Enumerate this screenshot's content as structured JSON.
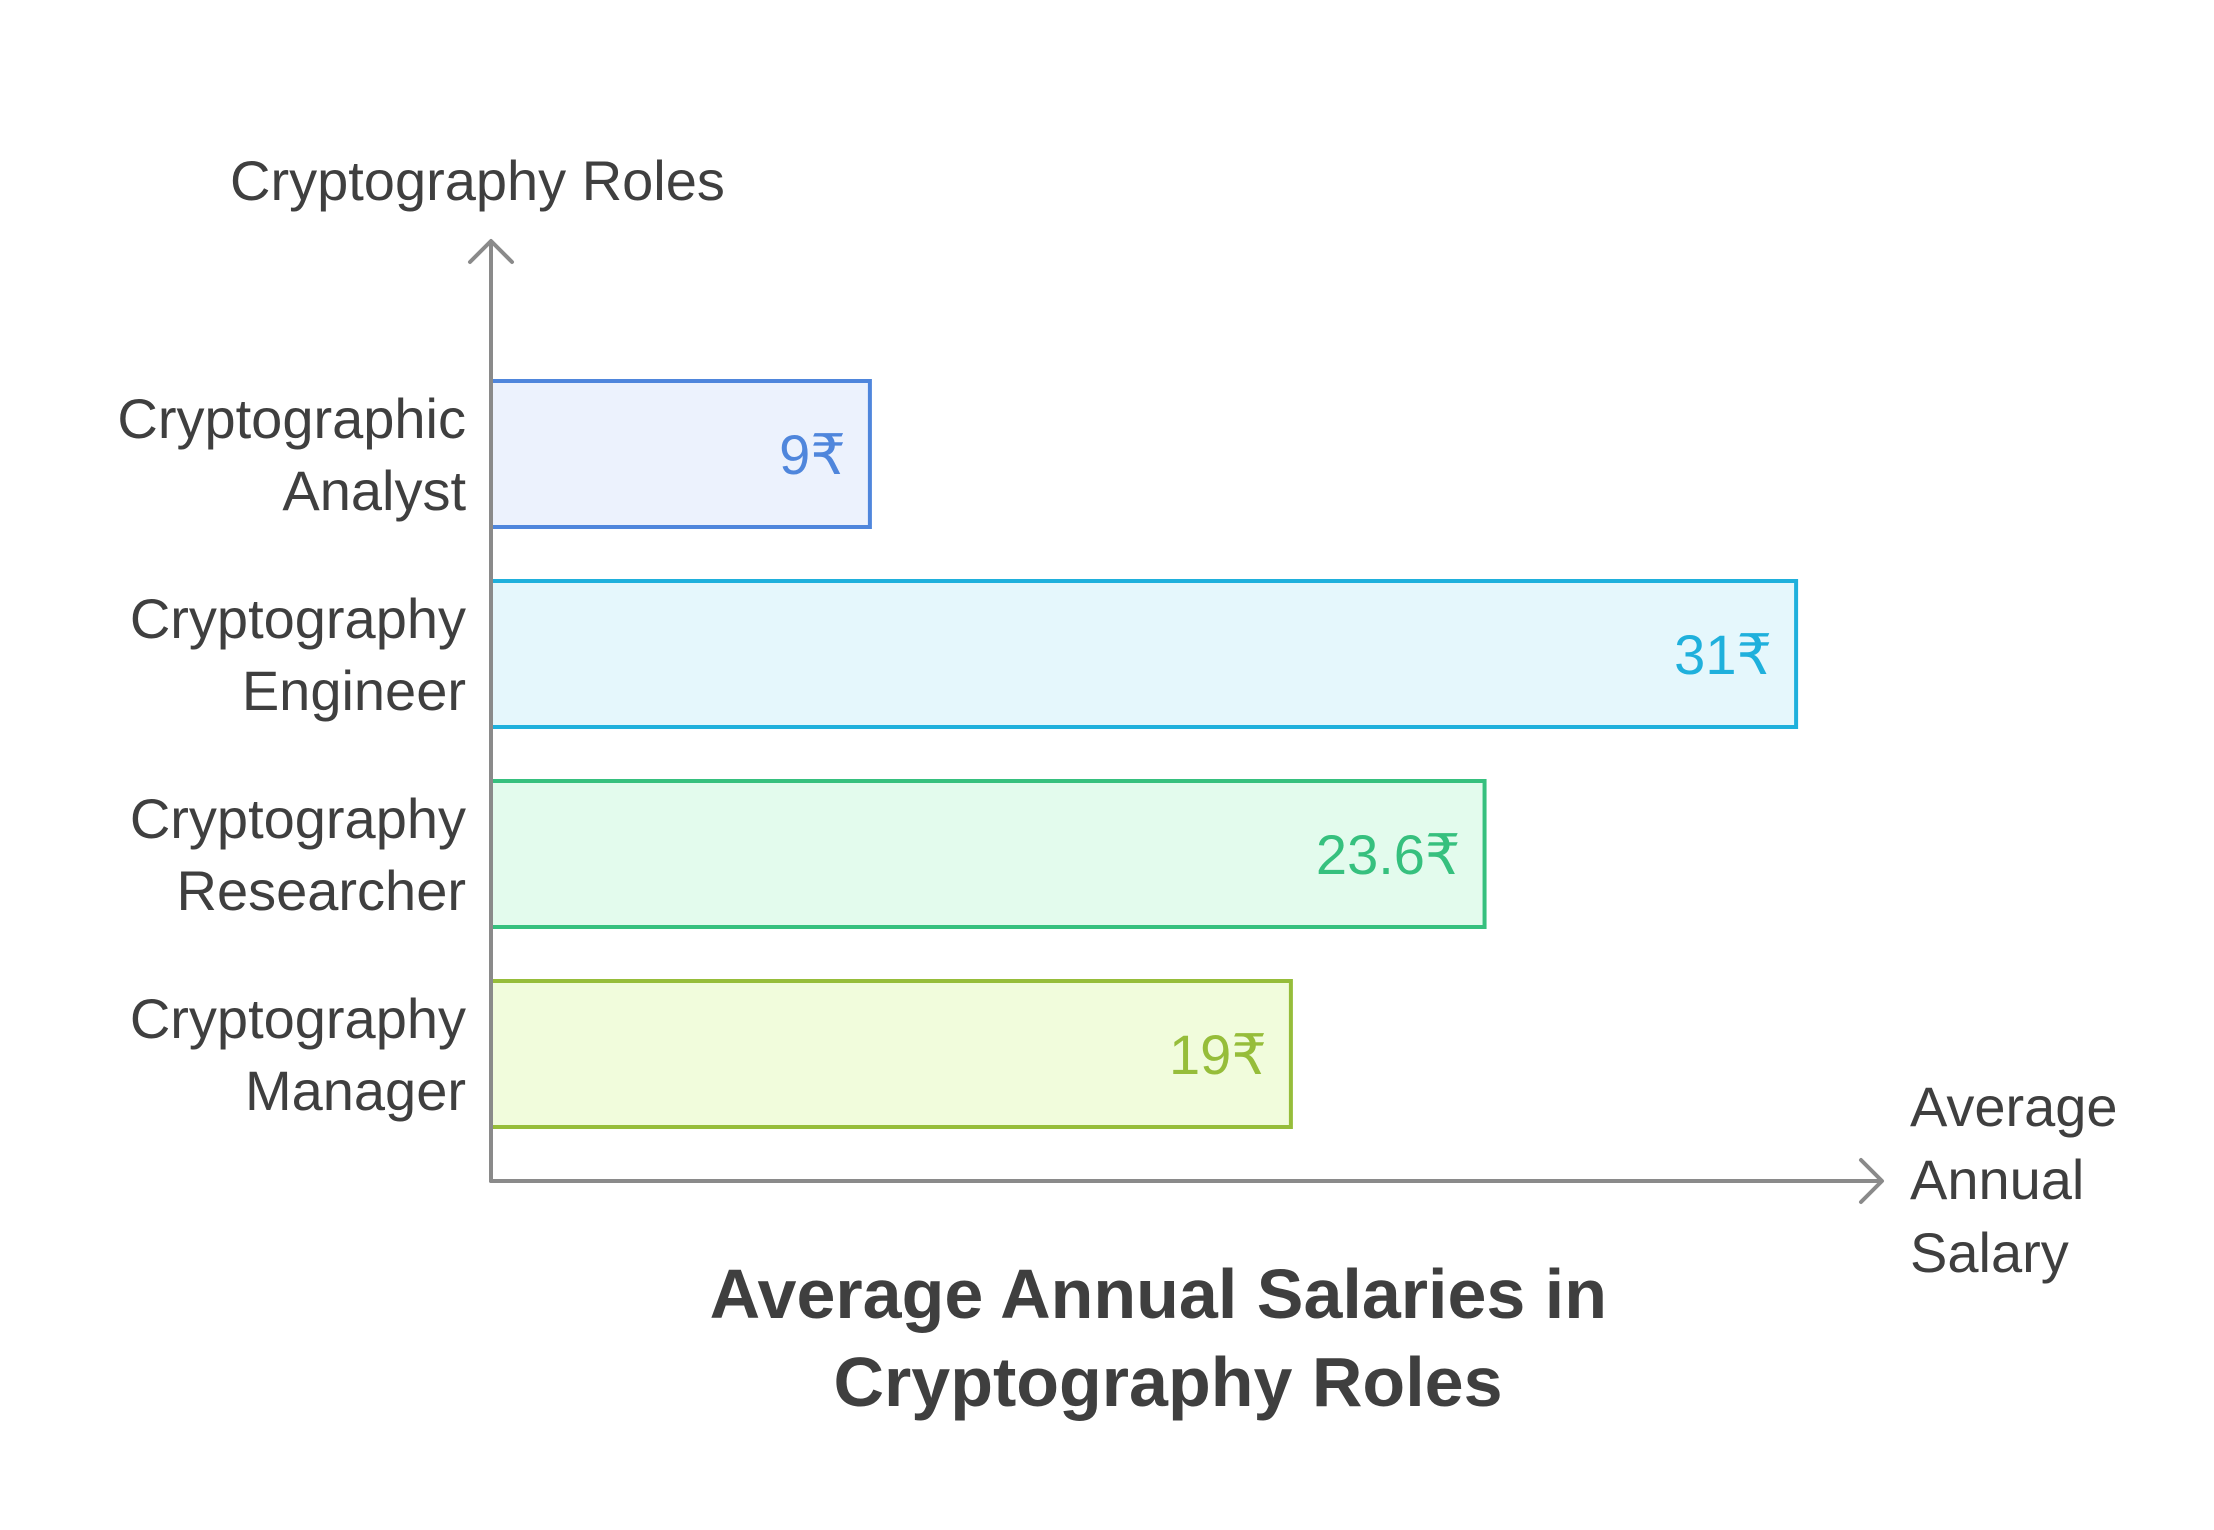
{
  "chart_data": {
    "type": "bar",
    "orientation": "horizontal",
    "title": [
      "Average Annual Salaries in",
      "Cryptography Roles"
    ],
    "ylabel": "Cryptography Roles",
    "xlabel": [
      "Average",
      "Annual",
      "Salary"
    ],
    "categories": [
      [
        "Cryptographic",
        "Analyst"
      ],
      [
        "Cryptography",
        "Engineer"
      ],
      [
        "Cryptography",
        "Researcher"
      ],
      [
        "Cryptography",
        "Manager"
      ]
    ],
    "values": [
      9,
      31,
      23.6,
      19
    ],
    "value_labels": [
      "9₹",
      "31₹",
      "23.6₹",
      "19₹"
    ],
    "xlim": [
      0,
      33
    ],
    "grid": false,
    "legend": "none",
    "colors": [
      {
        "stroke": "#4f86dc",
        "fill": "#ecf2fd"
      },
      {
        "stroke": "#1fb0dc",
        "fill": "#e5f7fc"
      },
      {
        "stroke": "#36c07e",
        "fill": "#e3fbed"
      },
      {
        "stroke": "#96bd3a",
        "fill": "#f1fcdc"
      }
    ],
    "axis_color": "#8a8a8a",
    "text_color": "#3f3f3f"
  }
}
